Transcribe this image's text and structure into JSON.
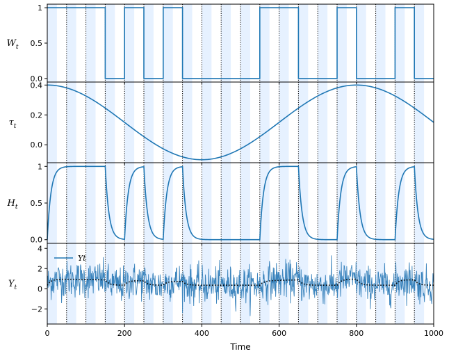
{
  "chart_data": {
    "type": "line",
    "xlabel": "Time",
    "xlim": [
      0,
      1000
    ],
    "x_ticks": [
      0,
      200,
      400,
      600,
      800,
      1000
    ],
    "colors": {
      "series": "#1f77b4",
      "noisy": "#3b84bd",
      "shade": "#e6f1ff",
      "dots": "#000000"
    },
    "grid": false,
    "background_bands": "alternating light-blue bands every 25 time units",
    "vertical_markers": {
      "style": "dotted",
      "every": 50,
      "range": [
        50,
        950
      ]
    },
    "panels": [
      {
        "ylabel": "W_t",
        "ylim": [
          -0.05,
          1.05
        ],
        "y_ticks": [
          0.0,
          0.5,
          1.0
        ],
        "series": [
          {
            "kind": "step",
            "segments": [
              [
                0,
                1
              ],
              [
                150,
                0
              ],
              [
                200,
                1
              ],
              [
                250,
                0
              ],
              [
                300,
                1
              ],
              [
                350,
                0
              ],
              [
                550,
                1
              ],
              [
                650,
                0
              ],
              [
                750,
                1
              ],
              [
                800,
                0
              ],
              [
                900,
                1
              ],
              [
                950,
                0
              ]
            ]
          }
        ]
      },
      {
        "ylabel": "τ_t",
        "ylim": [
          -0.12,
          0.42
        ],
        "y_ticks": [
          0.0,
          0.2,
          0.4
        ],
        "series": [
          {
            "kind": "function",
            "description": "0.15 + 0.25*cos(2π t/800)",
            "amplitude": 0.25,
            "offset": 0.15,
            "period": 800
          }
        ]
      },
      {
        "ylabel": "H_t",
        "ylim": [
          -0.05,
          1.05
        ],
        "y_ticks": [
          0.0,
          0.5,
          1.0
        ],
        "series": [
          {
            "kind": "relaxation",
            "target": "W_t",
            "time_constant": 10
          }
        ]
      },
      {
        "ylabel": "Y_t",
        "ylim": [
          -3.5,
          4.5
        ],
        "y_ticks": [
          -2,
          0,
          2,
          4
        ],
        "legend": {
          "label": "Y_t",
          "position": "top-left"
        },
        "series": [
          {
            "name": "Y_t",
            "kind": "noisy",
            "mean": "alternates ~0.3–1.0",
            "noise_sd": 0.9
          },
          {
            "kind": "smoothed-mean",
            "style": "dotted"
          }
        ]
      }
    ]
  }
}
